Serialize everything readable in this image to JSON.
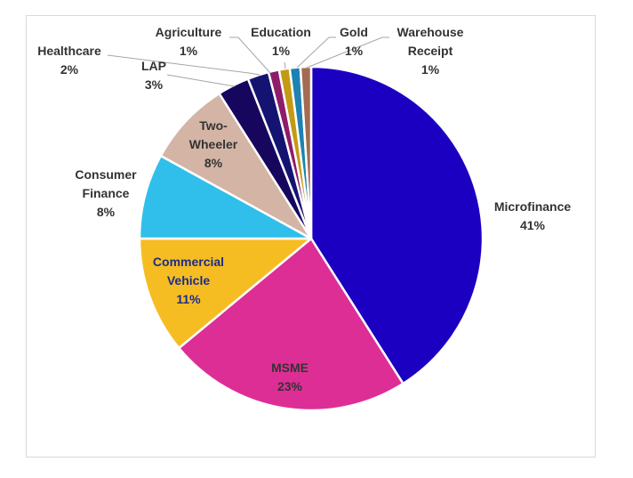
{
  "chart_data": {
    "type": "pie",
    "title": "",
    "legend": "none",
    "slices": [
      {
        "label": "Microfinance",
        "value": 41,
        "pct_label": "41%",
        "color": "#1b00c2",
        "label_color": "#333333"
      },
      {
        "label": "MSME",
        "value": 23,
        "pct_label": "23%",
        "color": "#dd2e96",
        "label_color": "#333333"
      },
      {
        "label": "Commercial Vehicle",
        "value": 11,
        "pct_label": "11%",
        "color": "#f6bd22",
        "label_color": "#1c2c8a"
      },
      {
        "label": "Consumer Finance",
        "value": 8,
        "pct_label": "8%",
        "color": "#30bfea",
        "label_color": "#333333"
      },
      {
        "label": "Two-Wheeler",
        "value": 8,
        "pct_label": "8%",
        "color": "#d3b4a5",
        "label_color": "#333333"
      },
      {
        "label": "LAP",
        "value": 3,
        "pct_label": "3%",
        "color": "#16065e",
        "label_color": "#333333"
      },
      {
        "label": "Healthcare",
        "value": 2,
        "pct_label": "2%",
        "color": "#151372",
        "label_color": "#333333"
      },
      {
        "label": "Agriculture",
        "value": 1,
        "pct_label": "1%",
        "color": "#8e1c68",
        "label_color": "#333333"
      },
      {
        "label": "Education",
        "value": 1,
        "pct_label": "1%",
        "color": "#c49a15",
        "label_color": "#333333"
      },
      {
        "label": "Gold",
        "value": 1,
        "pct_label": "1%",
        "color": "#1d82b1",
        "label_color": "#333333"
      },
      {
        "label": "Warehouse Receipt",
        "value": 1,
        "pct_label": "1%",
        "color": "#a36b52",
        "label_color": "#333333"
      }
    ]
  }
}
